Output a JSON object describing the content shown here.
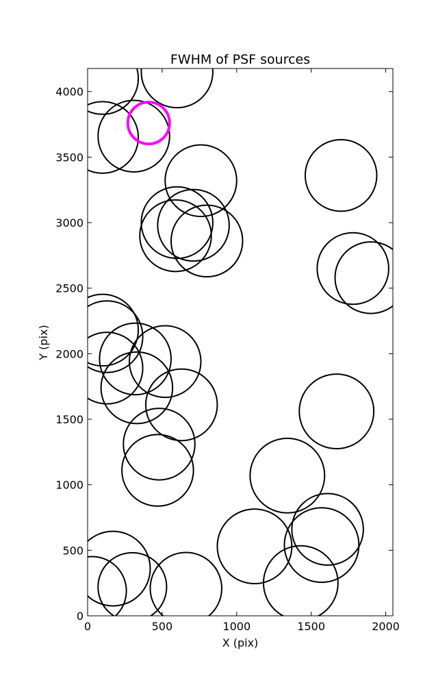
{
  "chart_data": {
    "type": "scatter",
    "title": "FWHM of PSF sources",
    "xlabel": "X (pix)",
    "ylabel": "Y (pix)",
    "xlim": [
      0,
      2048
    ],
    "ylim": [
      0,
      4176
    ],
    "xticks": [
      0,
      500,
      1000,
      1500,
      2000
    ],
    "yticks": [
      0,
      500,
      1000,
      1500,
      2000,
      2500,
      3000,
      3500,
      4000
    ],
    "grid": false,
    "marker": "circle",
    "colors": {
      "default": "#000000",
      "highlight": "#ff00ff"
    },
    "points": [
      {
        "x": 100,
        "y": 4100,
        "r": 240
      },
      {
        "x": 600,
        "y": 4150,
        "r": 240
      },
      {
        "x": 100,
        "y": 3650,
        "r": 240
      },
      {
        "x": 310,
        "y": 3660,
        "r": 240
      },
      {
        "x": 410,
        "y": 3760,
        "r": 140,
        "highlight": true
      },
      {
        "x": 760,
        "y": 3320,
        "r": 240
      },
      {
        "x": 600,
        "y": 3000,
        "r": 240
      },
      {
        "x": 710,
        "y": 2980,
        "r": 240
      },
      {
        "x": 590,
        "y": 2900,
        "r": 240
      },
      {
        "x": 800,
        "y": 2860,
        "r": 240
      },
      {
        "x": 1700,
        "y": 3360,
        "r": 240
      },
      {
        "x": 1780,
        "y": 2650,
        "r": 240
      },
      {
        "x": 1900,
        "y": 2580,
        "r": 240
      },
      {
        "x": 100,
        "y": 2180,
        "r": 240
      },
      {
        "x": 130,
        "y": 2130,
        "r": 240
      },
      {
        "x": 130,
        "y": 1890,
        "r": 240
      },
      {
        "x": 320,
        "y": 1960,
        "r": 240
      },
      {
        "x": 520,
        "y": 1940,
        "r": 240
      },
      {
        "x": 330,
        "y": 1740,
        "r": 240
      },
      {
        "x": 630,
        "y": 1610,
        "r": 240
      },
      {
        "x": 480,
        "y": 1310,
        "r": 240
      },
      {
        "x": 470,
        "y": 1110,
        "r": 240
      },
      {
        "x": 1670,
        "y": 1560,
        "r": 250
      },
      {
        "x": 1340,
        "y": 1070,
        "r": 250
      },
      {
        "x": 1610,
        "y": 660,
        "r": 240
      },
      {
        "x": 1570,
        "y": 540,
        "r": 250
      },
      {
        "x": 1120,
        "y": 530,
        "r": 250
      },
      {
        "x": 1430,
        "y": 250,
        "r": 250
      },
      {
        "x": 170,
        "y": 360,
        "r": 250
      },
      {
        "x": 30,
        "y": 190,
        "r": 230
      },
      {
        "x": 300,
        "y": 220,
        "r": 230
      },
      {
        "x": 660,
        "y": 210,
        "r": 240
      }
    ]
  }
}
